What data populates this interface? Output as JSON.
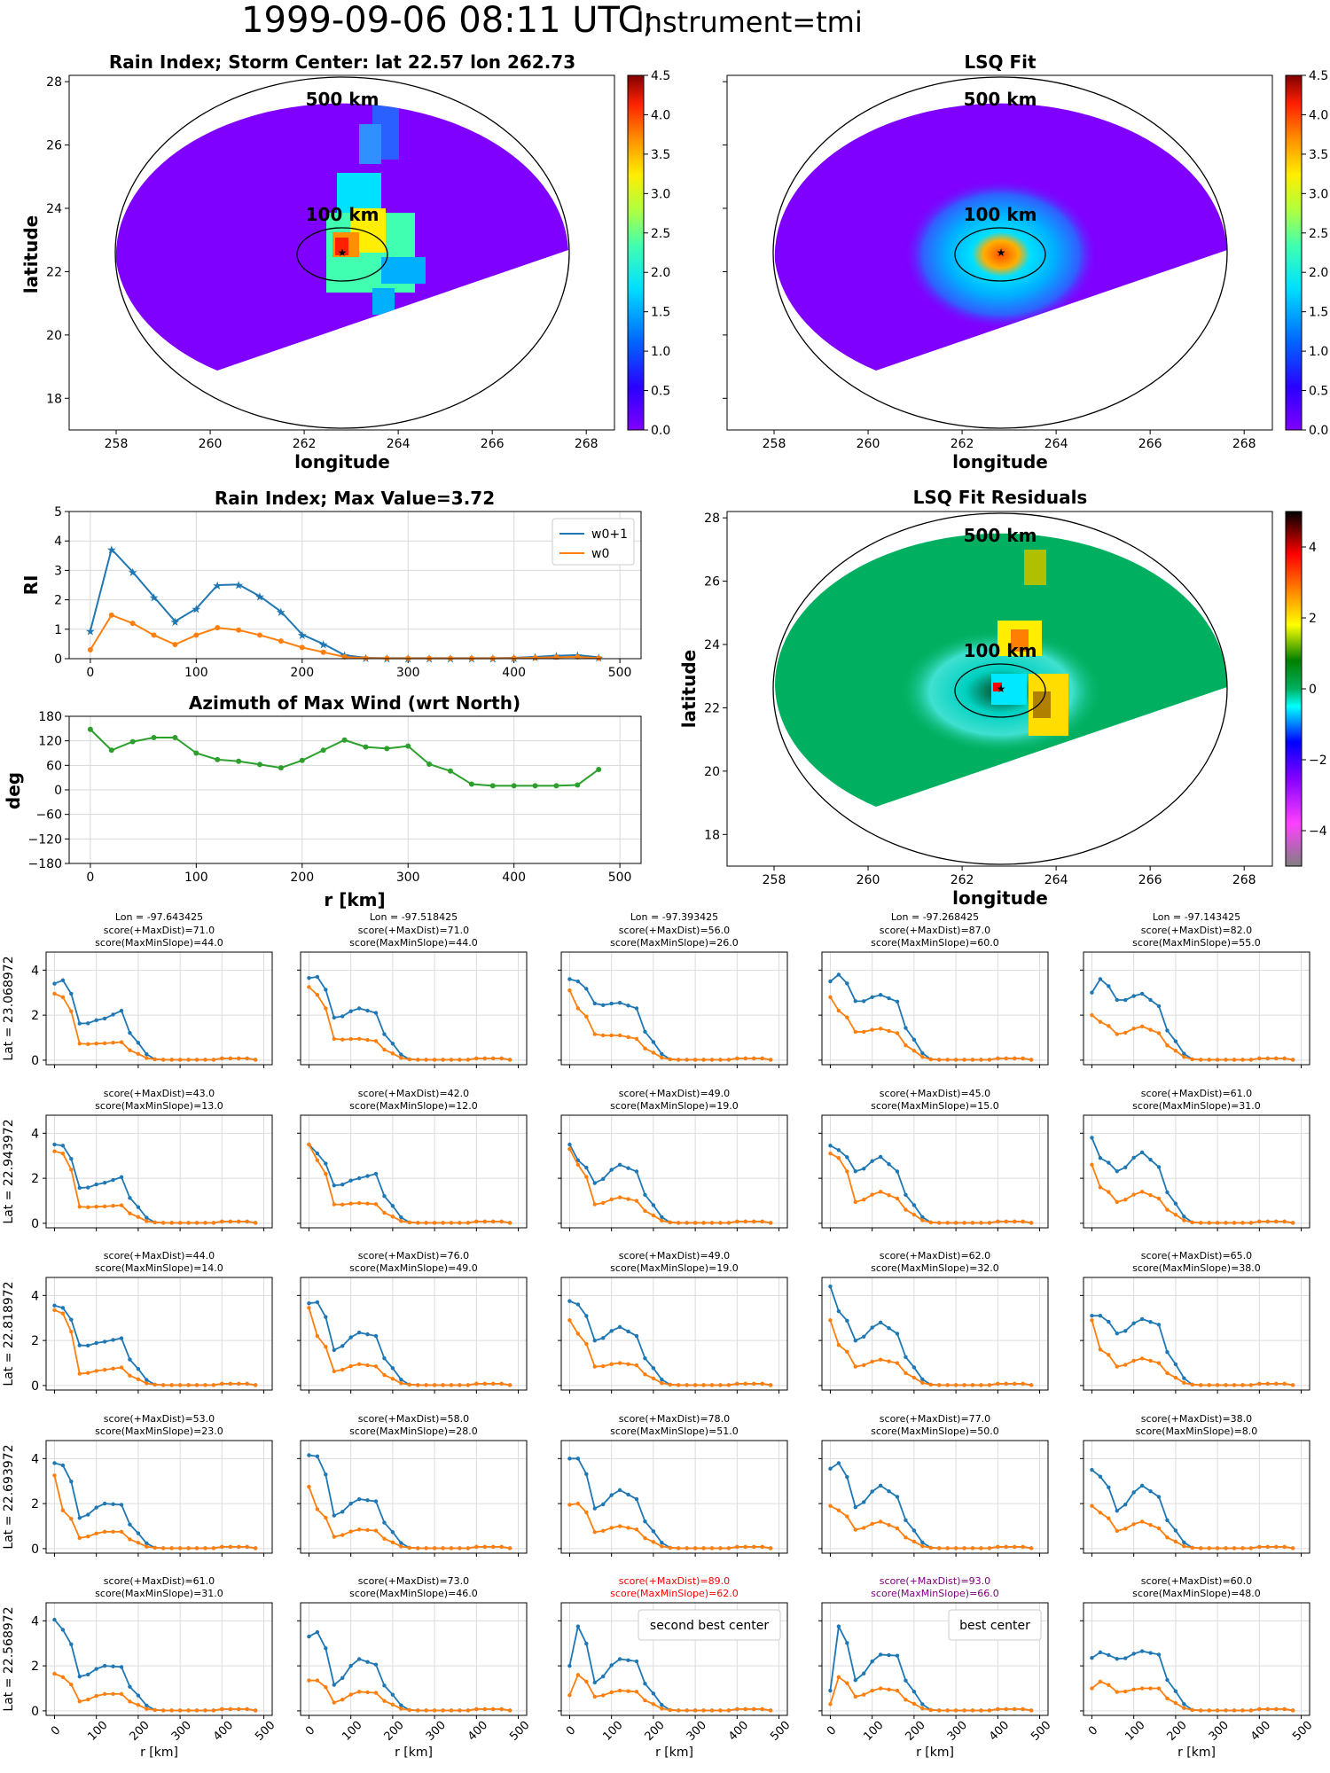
{
  "header": {
    "date": "1999-09-06 08:11 UTC;",
    "instrument": "Instrument=tmi"
  },
  "panels": {
    "rain_map": {
      "title": "Rain Index; Storm Center: lat 22.57 lon 262.73",
      "xlabel": "longitude",
      "ylabel": "latitude",
      "xticks": [
        "258",
        "260",
        "262",
        "264",
        "266",
        "268"
      ],
      "yticks": [
        "18",
        "20",
        "22",
        "24",
        "26",
        "28"
      ],
      "ring_outer": "500 km",
      "ring_inner": "100 km",
      "colorbar": [
        "0.0",
        "0.5",
        "1.0",
        "1.5",
        "2.0",
        "2.5",
        "3.0",
        "3.5",
        "4.0",
        "4.5"
      ]
    },
    "lsq_map": {
      "title": "LSQ Fit",
      "xticks": [
        "258",
        "260",
        "262",
        "264",
        "266",
        "268"
      ],
      "xlabel": "longitude",
      "ring_outer": "500 km",
      "ring_inner": "100 km",
      "colorbar": [
        "0.0",
        "0.5",
        "1.0",
        "1.5",
        "2.0",
        "2.5",
        "3.0",
        "3.5",
        "4.0",
        "4.5"
      ]
    },
    "resid_map": {
      "title": "LSQ Fit Residuals",
      "xlabel": "longitude",
      "ylabel": "latitude",
      "xticks": [
        "258",
        "260",
        "262",
        "264",
        "266",
        "268"
      ],
      "yticks": [
        "18",
        "20",
        "22",
        "24",
        "26",
        "28"
      ],
      "ring_outer": "500 km",
      "ring_inner": "100 km",
      "colorbar": [
        "4",
        "2",
        "0",
        "−2",
        "−4"
      ]
    }
  },
  "chart_data": [
    {
      "type": "line",
      "title": "Rain Index; Max Value=3.72",
      "ylabel": "RI",
      "xlim": [
        0,
        500
      ],
      "ylim": [
        0,
        5
      ],
      "x": [
        0,
        20,
        40,
        60,
        80,
        100,
        120,
        140,
        160,
        180,
        200,
        220,
        240,
        260,
        280,
        300,
        320,
        340,
        360,
        380,
        400,
        420,
        440,
        460,
        480
      ],
      "series": [
        {
          "name": "w0+1",
          "color": "#1f77b4",
          "values": [
            0.95,
            3.72,
            2.95,
            2.1,
            1.27,
            1.7,
            2.5,
            2.52,
            2.12,
            1.6,
            0.82,
            0.5,
            0.12,
            0.03,
            0.02,
            0.02,
            0.02,
            0.02,
            0.02,
            0.02,
            0.03,
            0.06,
            0.1,
            0.12,
            0.05
          ]
        },
        {
          "name": "w0",
          "color": "#ff7f0e",
          "values": [
            0.3,
            1.48,
            1.2,
            0.8,
            0.48,
            0.8,
            1.05,
            0.97,
            0.8,
            0.6,
            0.38,
            0.22,
            0.06,
            0.02,
            0.01,
            0.01,
            0.01,
            0.01,
            0.01,
            0.01,
            0.02,
            0.03,
            0.05,
            0.06,
            0.02
          ]
        }
      ],
      "grid": true,
      "legend": "top-right"
    },
    {
      "type": "line",
      "title": "Azimuth of Max Wind (wrt North)",
      "ylabel": "deg",
      "xlabel": "r [km]",
      "xlim": [
        0,
        500
      ],
      "ylim": [
        -180,
        180
      ],
      "yticks": [
        "180",
        "120",
        "60",
        "0",
        "−60",
        "−120",
        "−180"
      ],
      "x": [
        0,
        20,
        40,
        60,
        80,
        100,
        120,
        140,
        160,
        180,
        200,
        220,
        240,
        260,
        280,
        300,
        320,
        340,
        360,
        380,
        400,
        420,
        440,
        460,
        480
      ],
      "series": [
        {
          "color": "#2ca02c",
          "values": [
            148,
            97,
            118,
            128,
            128,
            90,
            74,
            70,
            62,
            54,
            72,
            97,
            122,
            105,
            101,
            107,
            63,
            46,
            14,
            10,
            10,
            10,
            10,
            12,
            50
          ]
        }
      ],
      "grid": true
    }
  ],
  "grid_panels": {
    "row_labels": [
      "Lat = 23.068972",
      "Lat = 22.943972",
      "Lat = 22.818972",
      "Lat = 22.693972",
      "Lat = 22.568972"
    ],
    "col_lons": [
      "Lon = -97.643425",
      "Lon = -97.518425",
      "Lon = -97.393425",
      "Lon = -97.268425",
      "Lon = -97.143425"
    ],
    "scores": [
      [
        [
          "score(+MaxDist)=71.0",
          "score(MaxMinSlope)=44.0"
        ],
        [
          "score(+MaxDist)=71.0",
          "score(MaxMinSlope)=44.0"
        ],
        [
          "score(+MaxDist)=56.0",
          "score(MaxMinSlope)=26.0"
        ],
        [
          "score(+MaxDist)=87.0",
          "score(MaxMinSlope)=60.0"
        ],
        [
          "score(+MaxDist)=82.0",
          "score(MaxMinSlope)=55.0"
        ]
      ],
      [
        [
          "score(+MaxDist)=43.0",
          "score(MaxMinSlope)=13.0"
        ],
        [
          "score(+MaxDist)=42.0",
          "score(MaxMinSlope)=12.0"
        ],
        [
          "score(+MaxDist)=49.0",
          "score(MaxMinSlope)=19.0"
        ],
        [
          "score(+MaxDist)=45.0",
          "score(MaxMinSlope)=15.0"
        ],
        [
          "score(+MaxDist)=61.0",
          "score(MaxMinSlope)=31.0"
        ]
      ],
      [
        [
          "score(+MaxDist)=44.0",
          "score(MaxMinSlope)=14.0"
        ],
        [
          "score(+MaxDist)=76.0",
          "score(MaxMinSlope)=49.0"
        ],
        [
          "score(+MaxDist)=49.0",
          "score(MaxMinSlope)=19.0"
        ],
        [
          "score(+MaxDist)=62.0",
          "score(MaxMinSlope)=32.0"
        ],
        [
          "score(+MaxDist)=65.0",
          "score(MaxMinSlope)=38.0"
        ]
      ],
      [
        [
          "score(+MaxDist)=53.0",
          "score(MaxMinSlope)=23.0"
        ],
        [
          "score(+MaxDist)=58.0",
          "score(MaxMinSlope)=28.0"
        ],
        [
          "score(+MaxDist)=78.0",
          "score(MaxMinSlope)=51.0"
        ],
        [
          "score(+MaxDist)=77.0",
          "score(MaxMinSlope)=50.0"
        ],
        [
          "score(+MaxDist)=38.0",
          "score(MaxMinSlope)=8.0"
        ]
      ],
      [
        [
          "score(+MaxDist)=61.0",
          "score(MaxMinSlope)=31.0"
        ],
        [
          "score(+MaxDist)=73.0",
          "score(MaxMinSlope)=46.0"
        ],
        [
          "score(+MaxDist)=89.0",
          "score(MaxMinSlope)=62.0"
        ],
        [
          "score(+MaxDist)=93.0",
          "score(MaxMinSlope)=66.0"
        ],
        [
          "score(+MaxDist)=60.0",
          "score(MaxMinSlope)=48.0"
        ]
      ]
    ],
    "score_colors": [
      [
        "#000",
        "#000",
        "#000",
        "#000",
        "#000"
      ],
      [
        "#000",
        "#000",
        "#000",
        "#000",
        "#000"
      ],
      [
        "#000",
        "#000",
        "#000",
        "#000",
        "#000"
      ],
      [
        "#000",
        "#000",
        "#000",
        "#000",
        "#000"
      ],
      [
        "#000",
        "#000",
        "#ff0000",
        "#800080",
        "#000"
      ]
    ],
    "annotations": [
      {
        "row": 4,
        "col": 2,
        "text": "second best center"
      },
      {
        "row": 4,
        "col": 3,
        "text": "best center"
      }
    ],
    "yticks": [
      "0",
      "2",
      "4"
    ],
    "xticks": [
      "0",
      "100",
      "200",
      "300",
      "400",
      "500"
    ],
    "xlabel": "r [km]",
    "blue_peaks": [
      [
        [
          3.4,
          3.55,
          1.55,
          1.85,
          2.2
        ],
        [
          3.65,
          3.7,
          1.8,
          2.3,
          2.1
        ],
        [
          3.6,
          3.5,
          2.4,
          2.55,
          2.3
        ],
        [
          3.5,
          3.8,
          2.5,
          2.9,
          2.6
        ],
        [
          3.0,
          3.6,
          2.55,
          2.95,
          2.4
        ]
      ],
      [
        [
          3.5,
          3.45,
          1.5,
          1.8,
          2.05
        ],
        [
          3.5,
          3.1,
          1.6,
          2.0,
          2.2
        ],
        [
          3.5,
          2.8,
          1.7,
          2.6,
          2.3
        ],
        [
          3.45,
          3.25,
          2.2,
          2.95,
          2.3
        ],
        [
          3.8,
          2.9,
          2.2,
          3.15,
          2.5
        ]
      ],
      [
        [
          3.55,
          3.45,
          1.7,
          1.95,
          2.1
        ],
        [
          3.65,
          3.7,
          1.5,
          2.35,
          2.2
        ],
        [
          3.75,
          3.6,
          1.9,
          2.6,
          2.2
        ],
        [
          4.4,
          3.3,
          1.9,
          2.8,
          2.3
        ],
        [
          3.1,
          3.1,
          2.2,
          2.95,
          2.7
        ]
      ],
      [
        [
          3.8,
          3.7,
          1.3,
          2.0,
          1.95
        ],
        [
          4.15,
          4.1,
          1.4,
          2.2,
          2.1
        ],
        [
          4.0,
          4.0,
          1.7,
          2.6,
          2.2
        ],
        [
          3.55,
          3.8,
          1.75,
          2.8,
          2.3
        ],
        [
          3.5,
          3.2,
          1.6,
          2.8,
          2.3
        ]
      ],
      [
        [
          4.05,
          3.6,
          1.45,
          2.0,
          1.95
        ],
        [
          3.3,
          3.5,
          1.1,
          2.3,
          2.05
        ],
        [
          2.0,
          3.75,
          1.2,
          2.3,
          2.2
        ],
        [
          0.9,
          3.75,
          1.3,
          2.5,
          2.45
        ],
        [
          2.35,
          2.6,
          2.2,
          2.65,
          2.5
        ]
      ]
    ],
    "orange_peaks": [
      [
        [
          2.95,
          2.8,
          0.7,
          0.75,
          0.8
        ],
        [
          3.25,
          2.9,
          0.9,
          0.95,
          0.85
        ],
        [
          3.1,
          2.3,
          1.1,
          1.1,
          0.95
        ],
        [
          2.8,
          2.2,
          1.2,
          1.4,
          1.2
        ],
        [
          2.0,
          1.7,
          1.1,
          1.5,
          1.2
        ]
      ],
      [
        [
          3.2,
          3.1,
          0.7,
          0.75,
          0.8
        ],
        [
          3.5,
          2.8,
          0.8,
          0.9,
          0.85
        ],
        [
          3.3,
          2.6,
          0.8,
          1.15,
          1.0
        ],
        [
          3.1,
          2.9,
          0.9,
          1.4,
          1.1
        ],
        [
          2.6,
          1.6,
          0.9,
          1.4,
          1.1
        ]
      ],
      [
        [
          3.35,
          3.2,
          0.5,
          0.7,
          0.8
        ],
        [
          3.45,
          2.2,
          0.6,
          0.95,
          0.85
        ],
        [
          2.9,
          2.3,
          0.8,
          1.0,
          0.9
        ],
        [
          2.9,
          1.8,
          0.8,
          1.15,
          1.0
        ],
        [
          2.9,
          1.6,
          0.8,
          1.2,
          1.0
        ]
      ],
      [
        [
          3.25,
          1.7,
          0.45,
          0.75,
          0.75
        ],
        [
          2.75,
          1.75,
          0.5,
          0.85,
          0.8
        ],
        [
          1.95,
          2.0,
          0.7,
          1.0,
          0.85
        ],
        [
          1.9,
          1.7,
          0.8,
          1.2,
          0.9
        ],
        [
          1.9,
          1.6,
          0.75,
          1.2,
          0.9
        ]
      ],
      [
        [
          1.65,
          1.5,
          0.4,
          0.75,
          0.75
        ],
        [
          1.35,
          1.35,
          0.35,
          0.85,
          0.8
        ],
        [
          0.7,
          1.6,
          0.6,
          0.9,
          0.85
        ],
        [
          0.3,
          1.5,
          0.6,
          1.0,
          0.9
        ],
        [
          1.0,
          1.3,
          0.8,
          1.0,
          1.0
        ]
      ]
    ]
  }
}
